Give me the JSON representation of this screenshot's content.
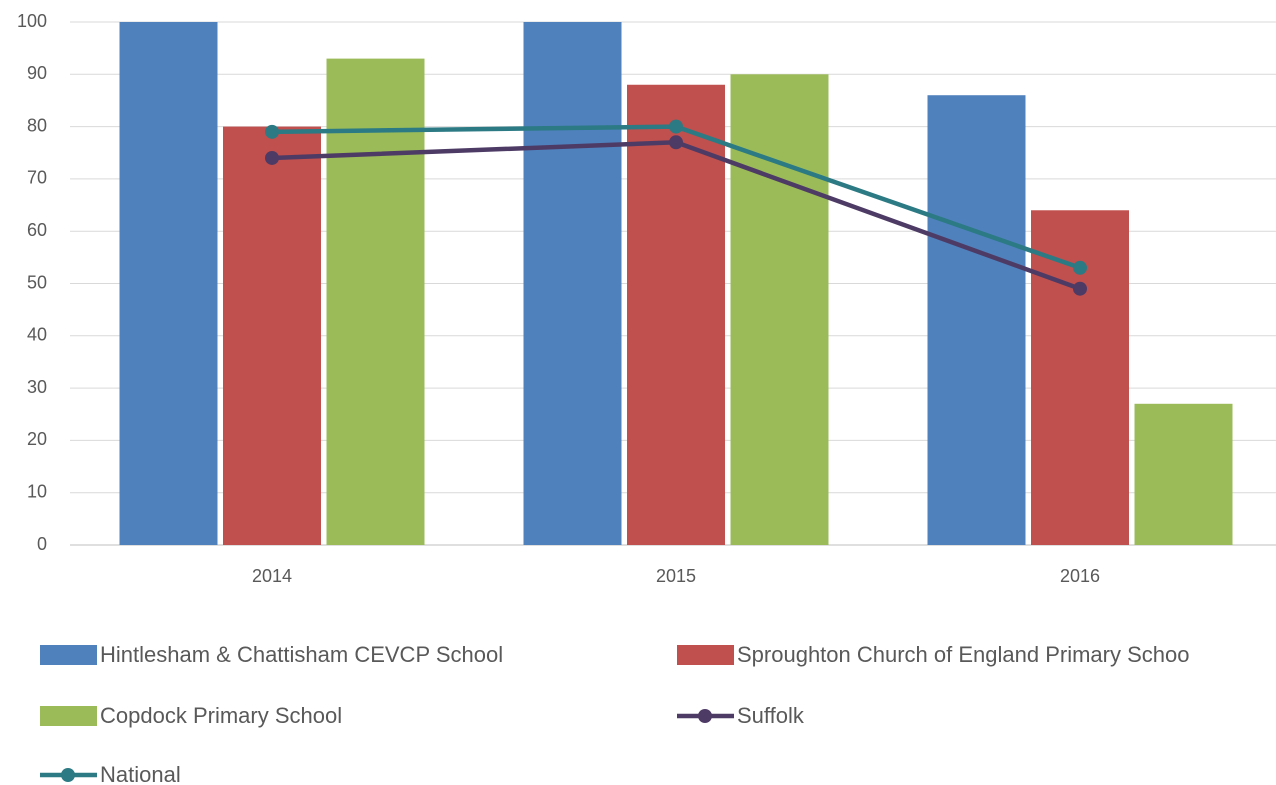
{
  "chart_data": {
    "type": "bar",
    "categories": [
      "2014",
      "2015",
      "2016"
    ],
    "ylim": [
      0,
      100
    ],
    "yticks": [
      0,
      10,
      20,
      30,
      40,
      50,
      60,
      70,
      80,
      90,
      100
    ],
    "grid": true,
    "series": [
      {
        "name": "Hintlesham & Chattisham CEVCP School",
        "type": "bar",
        "color": "#4f81bd",
        "values": [
          100,
          100,
          86
        ]
      },
      {
        "name": "Sproughton Church of England Primary Schoo",
        "type": "bar",
        "color": "#c0504d",
        "values": [
          80,
          88,
          64
        ]
      },
      {
        "name": "Copdock Primary School",
        "type": "bar",
        "color": "#9bbb59",
        "values": [
          93,
          90,
          27
        ]
      },
      {
        "name": "Suffolk",
        "type": "line",
        "color": "#4e3b65",
        "values": [
          74,
          77,
          49
        ]
      },
      {
        "name": "National",
        "type": "line",
        "color": "#2b7a84",
        "values": [
          79,
          80,
          53
        ]
      }
    ]
  }
}
